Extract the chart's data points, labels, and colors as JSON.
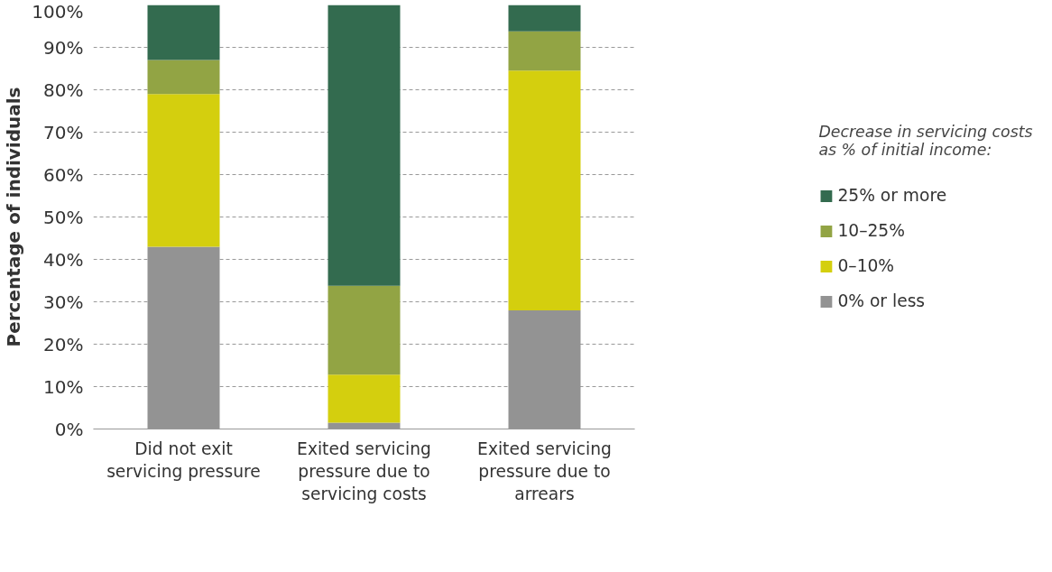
{
  "chart_data": {
    "type": "bar",
    "stacked": true,
    "ylabel": "Percentage of individuals",
    "legend_title": "Decrease in servicing costs as % of initial income:",
    "legend": "right",
    "grid": "y",
    "categories": [
      "Did not exit servicing pressure",
      "Exited servicing pressure due to servicing costs",
      "Exited servicing pressure due to arrears"
    ],
    "series": [
      {
        "name": "0% or less",
        "color": "#939393",
        "values": [
          43,
          1.5,
          28
        ]
      },
      {
        "name": "0–10%",
        "color": "#d4cf0e",
        "values": [
          36,
          11.3,
          56.5
        ]
      },
      {
        "name": "10–25%",
        "color": "#92a444",
        "values": [
          8,
          21,
          9.3
        ]
      },
      {
        "name": "25% or more",
        "color": "#336b4f",
        "values": [
          13,
          66.2,
          6.2
        ]
      }
    ],
    "ylim": [
      0,
      100
    ],
    "yticks": [
      {
        "value": 0,
        "label": "0%"
      },
      {
        "value": 10,
        "label": "10%"
      },
      {
        "value": 20,
        "label": "20%"
      },
      {
        "value": 30,
        "label": "30%"
      },
      {
        "value": 40,
        "label": "40%"
      },
      {
        "value": 50,
        "label": "50%"
      },
      {
        "value": 60,
        "label": "60%"
      },
      {
        "value": 70,
        "label": "70%"
      },
      {
        "value": 80,
        "label": "80%"
      },
      {
        "value": 90,
        "label": "90%"
      },
      {
        "value": 100,
        "label": "100%"
      }
    ]
  }
}
